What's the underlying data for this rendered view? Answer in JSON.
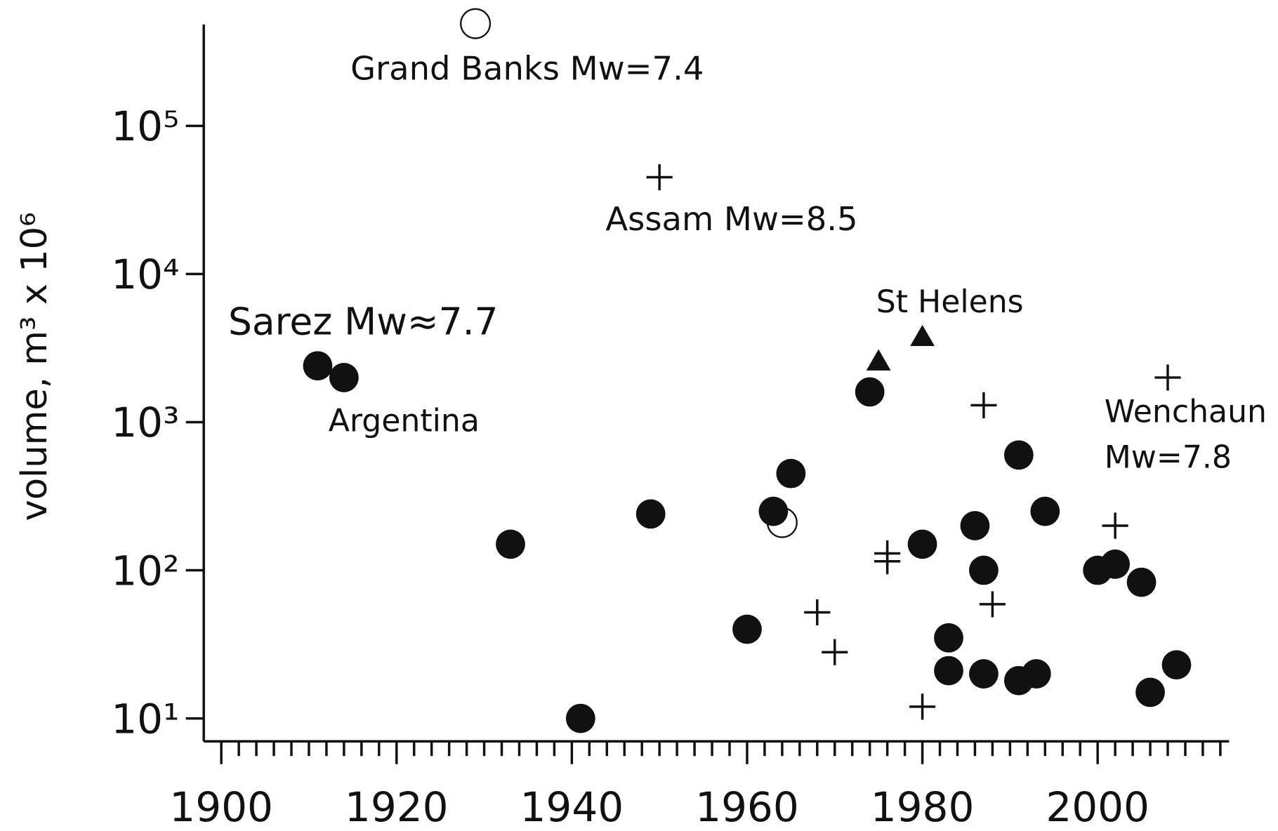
{
  "chart_data": {
    "type": "scatter",
    "y_label": "volume, m³ x 10⁶",
    "log_y": true,
    "xlim": [
      1898,
      2015
    ],
    "ylim": [
      7,
      600000
    ],
    "xticks": [
      1900,
      1920,
      1940,
      1960,
      1980,
      2000
    ],
    "xminorticks": [
      1902,
      1904,
      1906,
      1908,
      1910,
      1912,
      1914,
      1916,
      1918,
      1922,
      1924,
      1926,
      1928,
      1930,
      1932,
      1934,
      1936,
      1938,
      1942,
      1944,
      1946,
      1948,
      1950,
      1952,
      1954,
      1956,
      1958,
      1962,
      1964,
      1966,
      1968,
      1970,
      1972,
      1974,
      1976,
      1978,
      1982,
      1984,
      1986,
      1988,
      1990,
      1992,
      1994,
      1996,
      1998,
      2002,
      2004,
      2006,
      2008,
      2010,
      2012,
      2014
    ],
    "yticks": [
      {
        "value": 10,
        "label": "10¹"
      },
      {
        "value": 100,
        "label": "10²"
      },
      {
        "value": 1000,
        "label": "10³"
      },
      {
        "value": 10000,
        "label": "10⁴"
      },
      {
        "value": 100000,
        "label": "10⁵"
      }
    ],
    "series": [
      {
        "marker": "filled-circle",
        "color": "#111111",
        "x": [
          1911,
          1914,
          1933,
          1941,
          1949,
          1960,
          1963,
          1965,
          1974,
          1980,
          1983,
          1983,
          1986,
          1987,
          1987,
          1991,
          1991,
          1993,
          1994,
          2000,
          2002,
          2005,
          2006,
          2009
        ],
        "values": [
          2400,
          2000,
          150,
          10,
          240,
          40,
          250,
          450,
          1600,
          150,
          35,
          21,
          200,
          100,
          20,
          600,
          18,
          20,
          250,
          100,
          110,
          83,
          15,
          23
        ]
      },
      {
        "marker": "open-circle",
        "color": "#111111",
        "x": [
          1929,
          1964
        ],
        "values": [
          490000,
          210
        ]
      },
      {
        "marker": "plus",
        "color": "#111111",
        "x": [
          1950,
          1987,
          2008,
          2002,
          1976,
          1976,
          1968,
          1970,
          1988,
          1980
        ],
        "values": [
          45000,
          1300,
          2000,
          200,
          130,
          115,
          52,
          28,
          59,
          12
        ]
      },
      {
        "marker": "triangle",
        "color": "#111111",
        "x": [
          1975,
          1980
        ],
        "values": [
          2600,
          3800
        ]
      }
    ],
    "annotations": [
      "Grand Banks Mw=7.4",
      "Assam Mw=8.5",
      "Sarez Mw≈7.7",
      "Argentina",
      "St Helens",
      "Wenchaun",
      "Mw=7.8"
    ]
  }
}
